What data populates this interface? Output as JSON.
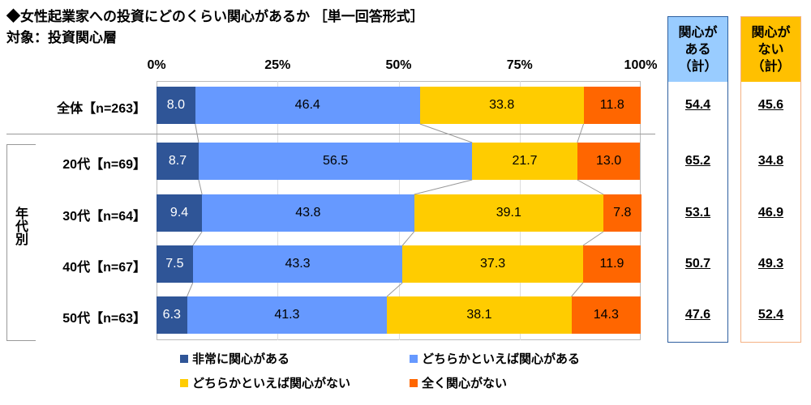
{
  "title": "◆女性起業家への投資にどのくらい関心があるか ［単一回答形式］",
  "subtitle": "対象：投資関心層",
  "group_label": "年代別",
  "chart_data": {
    "type": "bar",
    "stacked": true,
    "orientation": "horizontal",
    "title": "女性起業家への投資にどのくらい関心があるか",
    "ticks": [
      "0%",
      "25%",
      "50%",
      "75%",
      "100%"
    ],
    "xlim": [
      0,
      100
    ],
    "categories": [
      "全体【n=263】",
      "20代【n=69】",
      "30代【n=64】",
      "40代【n=67】",
      "50代【n=63】"
    ],
    "series": [
      {
        "name": "非常に関心がある",
        "color": "#2f5597",
        "text_color": "#ffffff",
        "values": [
          8.0,
          8.7,
          9.4,
          7.5,
          6.3
        ]
      },
      {
        "name": "どちらかといえば関心がある",
        "color": "#6699ff",
        "text_color": "#000000",
        "values": [
          46.4,
          56.5,
          43.8,
          43.3,
          41.3
        ]
      },
      {
        "name": "どちらかといえば関心がない",
        "color": "#ffcc00",
        "text_color": "#000000",
        "values": [
          33.8,
          21.7,
          39.1,
          37.3,
          38.1
        ]
      },
      {
        "name": "全く関心がない",
        "color": "#ff6600",
        "text_color": "#000000",
        "values": [
          11.8,
          13.0,
          7.8,
          11.9,
          14.3
        ]
      }
    ],
    "summary_columns": [
      {
        "header": "関心が\nある\n（計）",
        "header_color": "#99ccff",
        "border_color": "#2e5f9f",
        "values": [
          "54.4",
          "65.2",
          "53.1",
          "50.7",
          "47.6"
        ]
      },
      {
        "header": "関心が\nない\n（計）",
        "header_color": "#ffc000",
        "border_color": "#f4b183",
        "values": [
          "45.6",
          "34.8",
          "46.9",
          "49.3",
          "52.4"
        ]
      }
    ],
    "legend_position": "bottom"
  }
}
